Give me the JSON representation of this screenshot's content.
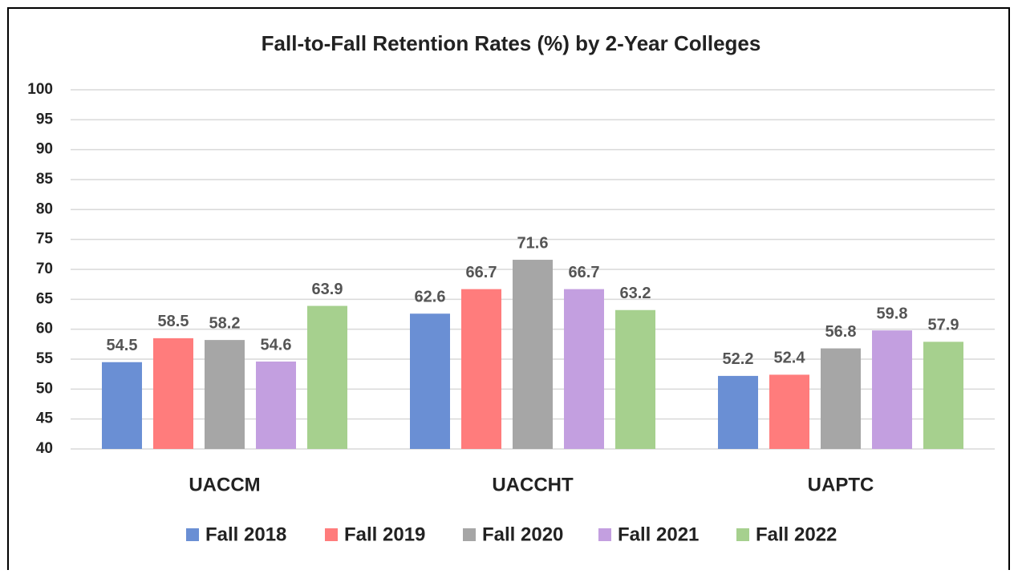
{
  "chart_data": {
    "type": "bar",
    "title": "Fall-to-Fall Retention Rates (%) by 2-Year Colleges",
    "categories": [
      "UACCM",
      "UACCHT",
      "UAPTC"
    ],
    "series": [
      {
        "name": "Fall 2018",
        "color": "#6a8fd4",
        "values": [
          54.5,
          62.6,
          52.2
        ]
      },
      {
        "name": "Fall 2019",
        "color": "#ff7c7c",
        "values": [
          58.5,
          66.7,
          52.4
        ]
      },
      {
        "name": "Fall 2020",
        "color": "#a6a6a6",
        "values": [
          58.2,
          71.6,
          56.8
        ]
      },
      {
        "name": "Fall 2021",
        "color": "#c39fe0",
        "values": [
          54.6,
          66.7,
          59.8
        ]
      },
      {
        "name": "Fall 2022",
        "color": "#a6d08e",
        "values": [
          63.9,
          63.2,
          57.9
        ]
      }
    ],
    "ylim": [
      40,
      100
    ],
    "yticks": [
      40,
      45,
      50,
      55,
      60,
      65,
      70,
      75,
      80,
      85,
      90,
      95,
      100
    ],
    "grid": true,
    "legend": "bottom"
  }
}
